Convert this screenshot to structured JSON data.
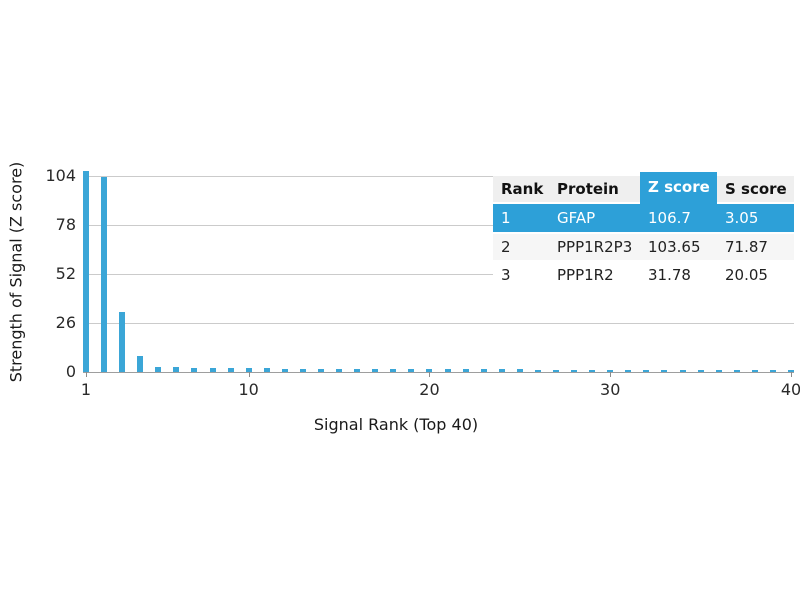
{
  "chart_data": {
    "type": "bar",
    "title": "",
    "xlabel": "Signal Rank (Top 40)",
    "ylabel": "Strength of Signal (Z score)",
    "x": [
      1,
      2,
      3,
      4,
      5,
      6,
      7,
      8,
      9,
      10,
      11,
      12,
      13,
      14,
      15,
      16,
      17,
      18,
      19,
      20,
      21,
      22,
      23,
      24,
      25,
      26,
      27,
      28,
      29,
      30,
      31,
      32,
      33,
      34,
      35,
      36,
      37,
      38,
      39,
      40
    ],
    "values": [
      106.7,
      103.65,
      31.78,
      8.5,
      2.6,
      2.4,
      2.2,
      2.1,
      2.0,
      1.9,
      1.9,
      1.8,
      1.8,
      1.7,
      1.7,
      1.6,
      1.6,
      1.6,
      1.5,
      1.5,
      1.5,
      1.4,
      1.4,
      1.4,
      1.4,
      1.3,
      1.3,
      1.3,
      1.3,
      1.3,
      1.2,
      1.2,
      1.2,
      1.2,
      1.2,
      1.2,
      1.1,
      1.1,
      1.1,
      1.1
    ],
    "xticks": [
      1,
      10,
      20,
      30,
      40
    ],
    "yticks": [
      0,
      26,
      52,
      78,
      104
    ],
    "ylim": [
      0,
      110
    ],
    "grid": "horizontal-only",
    "legend": "none",
    "bar_color": "#3ba6d7"
  },
  "colors": {
    "bar": "#3ba6d7",
    "highlight_blue": "#2da0d8",
    "gridline": "#cbcbcb",
    "axis_line": "#9e9e9e",
    "header_bg": "#efefef"
  },
  "table": {
    "columns": [
      "Rank",
      "Protein",
      "Z score",
      "S score"
    ],
    "rows": [
      {
        "rank": "1",
        "protein": "GFAP",
        "z": "106.7",
        "s": "3.05",
        "highlighted": true
      },
      {
        "rank": "2",
        "protein": "PPP1R2P3",
        "z": "103.65",
        "s": "71.87",
        "highlighted": false
      },
      {
        "rank": "3",
        "protein": "PPP1R2",
        "z": "31.78",
        "s": "20.05",
        "highlighted": false
      }
    ]
  }
}
